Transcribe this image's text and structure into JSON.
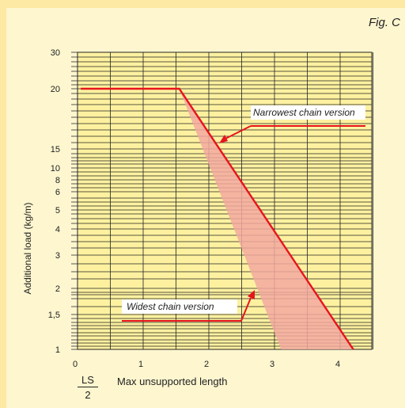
{
  "figure": {
    "label": "Fig. C"
  },
  "chart_data": {
    "type": "line",
    "ylabel": "Additional load (kg/m)",
    "xlabel_fraction": {
      "numerator": "LS",
      "denominator": "2"
    },
    "xlabel": "Max unsupported length",
    "x_ticks": [
      "0",
      "1",
      "2",
      "3",
      "4"
    ],
    "y_ticks": [
      "1",
      "1,5",
      "2",
      "3",
      "4",
      "5",
      "6",
      "8",
      "10",
      "15",
      "20",
      "30"
    ],
    "y_tick_values": [
      1,
      1.5,
      2,
      3,
      4,
      5,
      6,
      8,
      10,
      15,
      20,
      30
    ],
    "xlim": [
      0,
      4.5
    ],
    "series": [
      {
        "name": "Narrowest chain version",
        "x": [
          0.05,
          1.55,
          4.2
        ],
        "y": [
          20,
          20,
          1
        ]
      },
      {
        "name": "Widest chain version",
        "x": [
          1.55,
          3.1
        ],
        "y": [
          20,
          1
        ]
      }
    ],
    "shaded_band": "between widest and narrowest chain versions",
    "annotations": [
      "Narrowest chain version",
      "Widest chain version"
    ],
    "colors": {
      "line": "#e8141c",
      "band": "#f2a9a0",
      "grid_bg": "#fdf1a0",
      "page_bg": "#fdf6cf"
    },
    "grid": true
  }
}
